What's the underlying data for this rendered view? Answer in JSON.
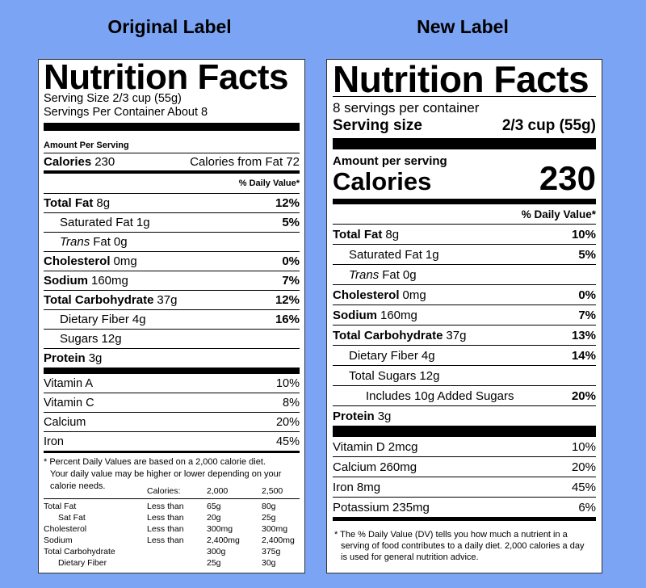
{
  "headings": {
    "original": "Original Label",
    "new": "New Label"
  },
  "original_label": {
    "title": "Nutrition Facts",
    "serving_size": "Serving Size 2/3 cup (55g)",
    "servings": "Servings Per Container About 8",
    "amount_per_serving": "Amount Per Serving",
    "calories_label": "Calories",
    "calories_value": "230",
    "calories_from_fat": "Calories from Fat 72",
    "dv_header": "% Daily Value*",
    "nutrients": [
      {
        "name": "Total Fat",
        "amount": "8g",
        "dv": "12%"
      },
      {
        "name": "Saturated Fat",
        "amount": "1g",
        "dv": "5%"
      },
      {
        "name_italic": "Trans",
        "name": "Fat",
        "amount": "0g"
      },
      {
        "name": "Cholesterol",
        "amount": "0mg",
        "dv": "0%"
      },
      {
        "name": "Sodium",
        "amount": "160mg",
        "dv": "7%"
      },
      {
        "name": "Total Carbohydrate",
        "amount": "37g",
        "dv": "12%"
      },
      {
        "name": "Dietary Fiber",
        "amount": "4g",
        "dv": "16%"
      },
      {
        "name": "Sugars",
        "amount": "12g"
      },
      {
        "name": "Protein",
        "amount": "3g"
      }
    ],
    "vitamins": [
      {
        "name": "Vitamin A",
        "dv": "10%"
      },
      {
        "name": "Vitamin C",
        "dv": "8%"
      },
      {
        "name": "Calcium",
        "dv": "20%"
      },
      {
        "name": "Iron",
        "dv": "45%"
      }
    ],
    "footnote": "* Percent Daily Values are based on a 2,000 calorie diet. Your daily value may be higher or lower depending on your calorie needs.",
    "footnote_table": {
      "header": [
        "Calories:",
        "2,000",
        "2,500"
      ],
      "rows": [
        {
          "name": "Total Fat",
          "limit": "Less than",
          "v2000": "65g",
          "v2500": "80g"
        },
        {
          "name": "Sat Fat",
          "limit": "Less than",
          "v2000": "20g",
          "v2500": "25g"
        },
        {
          "name": "Cholesterol",
          "limit": "Less than",
          "v2000": "300mg",
          "v2500": "300mg"
        },
        {
          "name": "Sodium",
          "limit": "Less than",
          "v2000": "2,400mg",
          "v2500": "2,400mg"
        },
        {
          "name": "Total Carbohydrate",
          "v2000": "300g",
          "v2500": "375g"
        },
        {
          "name": "Dietary Fiber",
          "v2000": "25g",
          "v2500": "30g"
        }
      ]
    }
  },
  "new_label": {
    "title": "Nutrition Facts",
    "servings": "8 servings per container",
    "serving_size_label": "Serving size",
    "serving_size_value": "2/3 cup (55g)",
    "amount_per_serving": "Amount per serving",
    "calories_label": "Calories",
    "calories_value": "230",
    "dv_header": "% Daily Value*",
    "nutrients": [
      {
        "name": "Total Fat",
        "amount": "8g",
        "dv": "10%"
      },
      {
        "name": "Saturated Fat",
        "amount": "1g",
        "dv": "5%"
      },
      {
        "name_italic": "Trans",
        "name": "Fat",
        "amount": "0g"
      },
      {
        "name": "Cholesterol",
        "amount": "0mg",
        "dv": "0%"
      },
      {
        "name": "Sodium",
        "amount": "160mg",
        "dv": "7%"
      },
      {
        "name": "Total Carbohydrate",
        "amount": "37g",
        "dv": "13%"
      },
      {
        "name": "Dietary Fiber",
        "amount": "4g",
        "dv": "14%"
      },
      {
        "name": "Total Sugars",
        "amount": "12g"
      },
      {
        "name": "Includes 10g Added Sugars",
        "dv": "20%"
      },
      {
        "name": "Protein",
        "amount": "3g"
      }
    ],
    "vitamins": [
      {
        "name": "Vitamin D",
        "amount": "2mcg",
        "dv": "10%"
      },
      {
        "name": "Calcium",
        "amount": "260mg",
        "dv": "20%"
      },
      {
        "name": "Iron",
        "amount": "8mg",
        "dv": "45%"
      },
      {
        "name": "Potassium",
        "amount": "235mg",
        "dv": "6%"
      }
    ],
    "footnote": "* The % Daily Value (DV) tells you how much a nutrient in a serving of food contributes to a daily diet. 2,000 calories a day is used for general nutrition advice."
  }
}
